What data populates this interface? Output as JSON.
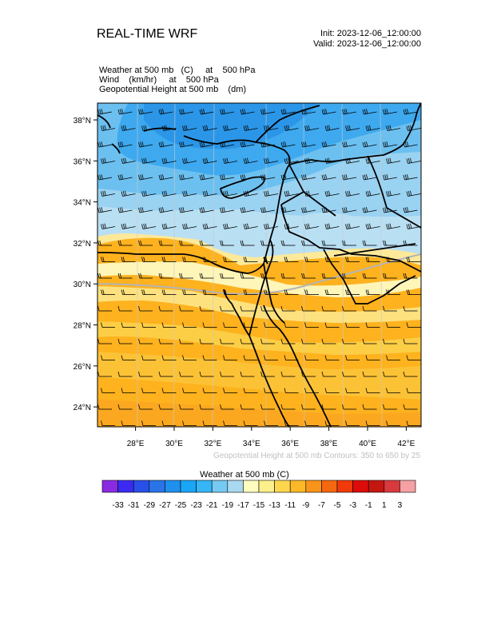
{
  "header": {
    "title": "REAL-TIME WRF",
    "init": "Init: 2023-12-06_12:00:00",
    "valid": "Valid: 2023-12-06_12:00:00"
  },
  "fields": [
    "Weather at 500 mb   (C)     at    500 hPa",
    "Wind    (km/hr)     at    500 hPa",
    "Geopotential Height at 500 mb    (dm)"
  ],
  "map": {
    "lat_labels": [
      "38°N",
      "36°N",
      "34°N",
      "32°N",
      "30°N",
      "28°N",
      "26°N",
      "24°N"
    ],
    "lon_labels": [
      "28°E",
      "30°E",
      "32°E",
      "34°E",
      "36°E",
      "38°E",
      "40°E",
      "42°E"
    ],
    "lat_values": [
      38,
      36,
      34,
      32,
      30,
      28,
      26,
      24
    ],
    "lon_values": [
      28,
      30,
      32,
      34,
      36,
      38,
      40,
      42
    ],
    "contour_note": "Geopotential Height at 500 mb Contours: 350 to 650 by 25"
  },
  "colorbar": {
    "title": "Weather at 500 mb  (C)",
    "labels": [
      "-33",
      "-31",
      "-29",
      "-27",
      "-25",
      "-23",
      "-21",
      "-19",
      "-17",
      "-15",
      "-13",
      "-11",
      "-9",
      "-7",
      "-5",
      "-3",
      "-1",
      "1",
      "3"
    ],
    "colors": [
      "#8a2be2",
      "#3b2bf2",
      "#2850e8",
      "#2a74e8",
      "#1f90ee",
      "#1aa6f6",
      "#35b6f6",
      "#76c9f2",
      "#a9d8f0",
      "#fefcbf",
      "#fdf08a",
      "#fcd74e",
      "#fbb928",
      "#f9941a",
      "#f5680f",
      "#f03a0a",
      "#dd0c0a",
      "#c41712",
      "#d93a3e",
      "#f5a1a4"
    ]
  }
}
